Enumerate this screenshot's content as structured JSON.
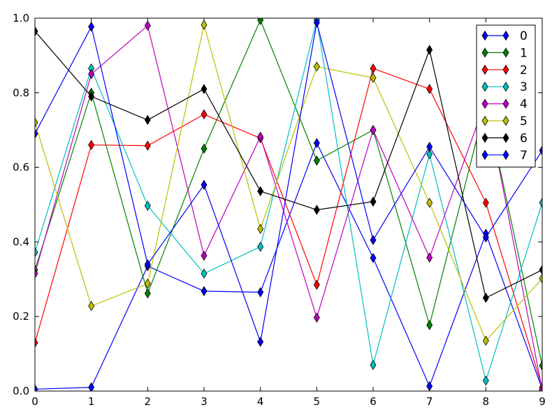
{
  "chart_data": {
    "type": "line",
    "title": "",
    "xlabel": "",
    "ylabel": "",
    "xlim": [
      0,
      9
    ],
    "ylim": [
      0,
      1.0
    ],
    "grid": false,
    "legend_position": "top-right",
    "marker": "diamond",
    "x": [
      0,
      1,
      2,
      3,
      4,
      5,
      6,
      7,
      8,
      9
    ],
    "x_ticks": [
      0,
      1,
      2,
      3,
      4,
      5,
      6,
      7,
      8,
      9
    ],
    "y_ticks": [
      0.0,
      0.2,
      0.4,
      0.6,
      0.8,
      1.0
    ],
    "x_tick_labels": [
      "0",
      "1",
      "2",
      "3",
      "4",
      "5",
      "6",
      "7",
      "8",
      "9"
    ],
    "y_tick_labels": [
      "0.0",
      "0.2",
      "0.4",
      "0.6",
      "0.8",
      "1.0"
    ],
    "series": [
      {
        "name": "0",
        "color": "#0000ff",
        "values": [
          0.005,
          0.01,
          0.335,
          0.268,
          0.265,
          0.665,
          0.357,
          0.013,
          0.422,
          0.005
        ]
      },
      {
        "name": "1",
        "color": "#008000",
        "values": [
          0.325,
          0.8,
          0.262,
          0.65,
          0.995,
          0.618,
          0.7,
          0.177,
          0.772,
          0.068
        ]
      },
      {
        "name": "2",
        "color": "#ff0000",
        "values": [
          0.13,
          0.66,
          0.658,
          0.742,
          0.678,
          0.285,
          0.865,
          0.81,
          0.505,
          0.01
        ]
      },
      {
        "name": "3",
        "color": "#00bfbf",
        "values": [
          0.372,
          0.865,
          0.497,
          0.315,
          0.387,
          0.995,
          0.07,
          0.635,
          0.028,
          0.505
        ]
      },
      {
        "name": "4",
        "color": "#bf00bf",
        "values": [
          0.315,
          0.85,
          0.98,
          0.363,
          0.682,
          0.197,
          0.7,
          0.358,
          0.78,
          0.003
        ]
      },
      {
        "name": "5",
        "color": "#bfbf00",
        "values": [
          0.72,
          0.228,
          0.288,
          0.982,
          0.435,
          0.87,
          0.84,
          0.505,
          0.135,
          0.302
        ]
      },
      {
        "name": "6",
        "color": "#000000",
        "values": [
          0.965,
          0.79,
          0.727,
          0.81,
          0.536,
          0.486,
          0.508,
          0.915,
          0.25,
          0.325
        ]
      },
      {
        "name": "7",
        "color": "#0000ff",
        "values": [
          0.69,
          0.977,
          0.34,
          0.553,
          0.132,
          0.988,
          0.405,
          0.655,
          0.412,
          0.645
        ]
      }
    ]
  }
}
